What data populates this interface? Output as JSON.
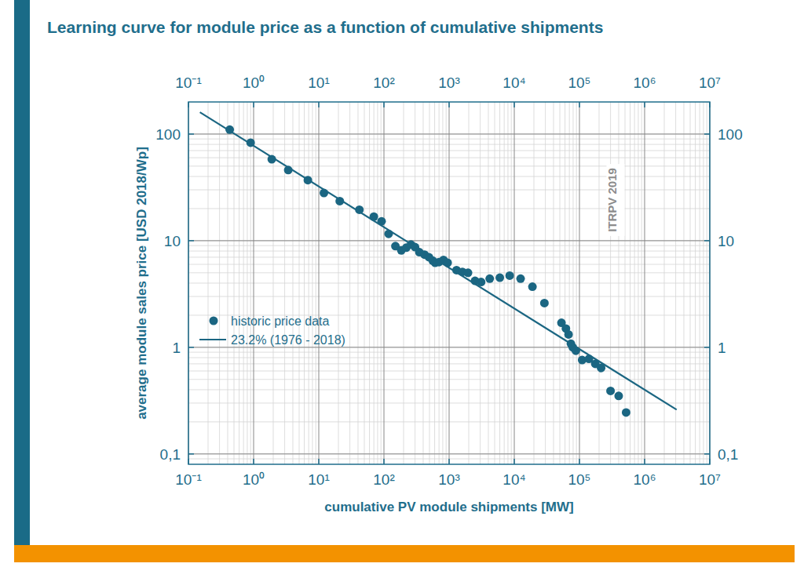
{
  "chart_data": {
    "type": "scatter",
    "title": "Learning curve for module price as a function of cumulative shipments",
    "x_label": "cumulative PV module shipments [MW]",
    "y_label": "average module sales price [USD 2018/Wp]",
    "annotations": [
      "ITRPV 2019"
    ],
    "log": true,
    "grid": true,
    "legend": "left",
    "xlim": [
      0.1,
      10000000
    ],
    "ylim": [
      0.08,
      200
    ],
    "xticks": [
      {
        "value": 0.1,
        "label": "10⁻¹"
      },
      {
        "value": 1,
        "label": "10⁰"
      },
      {
        "value": 10,
        "label": "10¹"
      },
      {
        "value": 100,
        "label": "10²"
      },
      {
        "value": 1000,
        "label": "10³"
      },
      {
        "value": 10000,
        "label": "10⁴"
      },
      {
        "value": 100000,
        "label": "10⁵"
      },
      {
        "value": 1000000,
        "label": "10⁶"
      },
      {
        "value": 10000000,
        "label": "10⁷"
      }
    ],
    "yticks": [
      {
        "value": 0.1,
        "label": "0,1"
      },
      1,
      10,
      100
    ],
    "series": [
      {
        "name": "historic price data",
        "type": "scatter",
        "marker": "circle",
        "color": "#1b6682",
        "x": [
          0.43,
          0.9,
          1.9,
          3.4,
          6.8,
          12,
          21,
          42,
          70,
          92,
          118,
          150,
          185,
          220,
          260,
          300,
          350,
          420,
          490,
          560,
          610,
          700,
          820,
          950,
          1300,
          1600,
          1950,
          2500,
          3100,
          4200,
          6000,
          8500,
          12500,
          19000,
          29000,
          53000,
          62000,
          68000,
          74000,
          79000,
          88000,
          110000,
          140000,
          175000,
          215000,
          300000,
          400000,
          520000
        ],
        "values": [
          110,
          83,
          58,
          46,
          37,
          28,
          23.5,
          19.5,
          16.8,
          15.2,
          11.6,
          8.9,
          8.1,
          8.6,
          9.2,
          8.7,
          7.8,
          7.4,
          7.0,
          6.5,
          6.2,
          6.3,
          6.6,
          6.2,
          5.3,
          5.1,
          5.0,
          4.2,
          4.1,
          4.4,
          4.5,
          4.7,
          4.4,
          3.7,
          2.6,
          1.7,
          1.5,
          1.32,
          1.08,
          1.0,
          0.93,
          0.76,
          0.78,
          0.7,
          0.64,
          0.39,
          0.35,
          0.245
        ]
      },
      {
        "name": "23.2% (1976 - 2018)",
        "type": "line",
        "line_style": "solid",
        "color": "#1b6682",
        "x": [
          0.15,
          3100000
        ],
        "values": [
          160,
          0.26
        ]
      }
    ]
  }
}
